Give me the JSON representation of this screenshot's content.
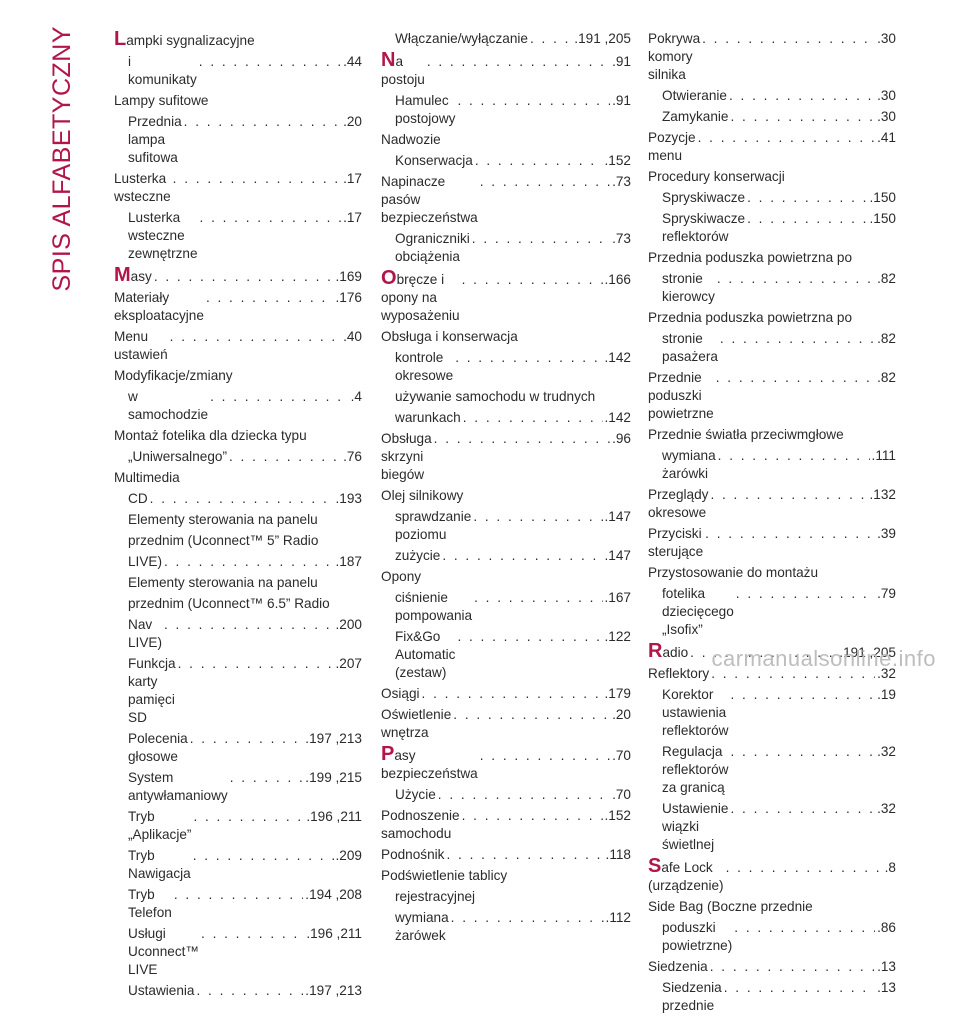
{
  "sidebar_title": "SPIS ALFABETYCZNY",
  "watermark": "carmanualsonline.info",
  "col1": [
    {
      "big": "L",
      "first": "ampki sygnalizacyjne",
      "rest": [],
      "page": ""
    },
    {
      "indent": 1,
      "text": "i komunikaty",
      "page": ".44"
    },
    {
      "text": "Lampy sufitowe",
      "page": ""
    },
    {
      "indent": 1,
      "text": "Przednia lampa sufitowa",
      "page": ".20"
    },
    {
      "text": "Lusterka wsteczne",
      "page": ".17"
    },
    {
      "indent": 1,
      "text": "Lusterka wsteczne zewnętrzne",
      "page": ".17"
    },
    {
      "big": "M",
      "first": "asy",
      "page": ".169"
    },
    {
      "text": "Materiały eksploatacyjne",
      "page": ".176"
    },
    {
      "text": "Menu ustawień",
      "page": ".40"
    },
    {
      "text": "Modyfikacje/zmiany",
      "page": ""
    },
    {
      "indent": 1,
      "text": "w samochodzie",
      "page": ".4"
    },
    {
      "text": "Montaż fotelika dla dziecka typu",
      "page": ""
    },
    {
      "indent": 1,
      "text": "„Uniwersalnego”",
      "page": ".76"
    },
    {
      "text": "Multimedia",
      "page": ""
    },
    {
      "indent": 1,
      "text": "CD",
      "page": ".193"
    },
    {
      "indent": 1,
      "text": "Elementy sterowania na panelu",
      "page": ""
    },
    {
      "indent": 1,
      "text": "przednim (Uconnect™ 5” Radio",
      "page": ""
    },
    {
      "indent": 1,
      "text": "LIVE)",
      "page": ".187"
    },
    {
      "indent": 1,
      "text": "Elementy sterowania na panelu",
      "page": ""
    },
    {
      "indent": 1,
      "text": "przednim (Uconnect™ 6.5” Radio",
      "page": ""
    },
    {
      "indent": 1,
      "text": "Nav LIVE)",
      "page": ".200"
    },
    {
      "indent": 1,
      "text": "Funkcja karty pamięci SD",
      "page": ".207"
    },
    {
      "indent": 1,
      "text": "Polecenia głosowe",
      "page": ".197 ,213"
    },
    {
      "indent": 1,
      "text": "System antywłamaniowy",
      "page": ".199 ,215"
    },
    {
      "indent": 1,
      "text": "Tryb „Aplikacje”",
      "page": ".196 ,211"
    },
    {
      "indent": 1,
      "text": "Tryb Nawigacja",
      "page": ".209"
    },
    {
      "indent": 1,
      "text": "Tryb Telefon",
      "page": ".194 ,208"
    },
    {
      "indent": 1,
      "text": "Usługi Uconnect™ LIVE",
      "page": ".196 ,211"
    },
    {
      "indent": 1,
      "text": "Ustawienia",
      "page": ".197 ,213"
    }
  ],
  "col2": [
    {
      "indent": 1,
      "text": "Włączanie/wyłączanie",
      "page": ".191 ,205"
    },
    {
      "big": "N",
      "first": "a postoju",
      "page": ".91"
    },
    {
      "indent": 1,
      "text": "Hamulec postojowy",
      "page": ".91"
    },
    {
      "text": "Nadwozie",
      "page": ""
    },
    {
      "indent": 1,
      "text": "Konserwacja",
      "page": ".152"
    },
    {
      "text": "Napinacze pasów bezpieczeństwa",
      "page": ".73"
    },
    {
      "indent": 1,
      "text": "Ograniczniki obciążenia",
      "page": ".73"
    },
    {
      "big": "O",
      "first": "bręcze i opony na wyposażeniu",
      "page": ".166"
    },
    {
      "text": "Obsługa i konserwacja",
      "page": ""
    },
    {
      "indent": 1,
      "text": "kontrole okresowe",
      "page": ".142"
    },
    {
      "indent": 1,
      "text": "używanie samochodu w trudnych",
      "page": ""
    },
    {
      "indent": 1,
      "text": "warunkach",
      "page": ".142"
    },
    {
      "text": "Obsługa skrzyni biegów",
      "page": ".96"
    },
    {
      "text": "Olej silnikowy",
      "page": ""
    },
    {
      "indent": 1,
      "text": "sprawdzanie poziomu",
      "page": ".147"
    },
    {
      "indent": 1,
      "text": "zużycie",
      "page": ".147"
    },
    {
      "text": "Opony",
      "page": ""
    },
    {
      "indent": 1,
      "text": "ciśnienie pompowania",
      "page": ".167"
    },
    {
      "indent": 1,
      "text": "Fix&Go Automatic (zestaw)",
      "page": ".122"
    },
    {
      "text": "Osiągi",
      "page": ".179"
    },
    {
      "text": "Oświetlenie wnętrza",
      "page": ".20"
    },
    {
      "big": "P",
      "first": "asy bezpieczeństwa",
      "page": ".70"
    },
    {
      "indent": 1,
      "text": "Użycie",
      "page": ".70"
    },
    {
      "text": "Podnoszenie samochodu",
      "page": ".152"
    },
    {
      "text": "Podnośnik",
      "page": ".118"
    },
    {
      "text": "Podświetlenie tablicy",
      "page": ""
    },
    {
      "indent": 1,
      "text": "rejestracyjnej",
      "page": ""
    },
    {
      "indent": 1,
      "text": "wymiana żarówek",
      "page": ".112"
    }
  ],
  "col3": [
    {
      "text": "Pokrywa komory silnika",
      "page": ".30"
    },
    {
      "indent": 1,
      "text": "Otwieranie",
      "page": ".30"
    },
    {
      "indent": 1,
      "text": "Zamykanie",
      "page": ".30"
    },
    {
      "text": "Pozycje menu",
      "page": ".41"
    },
    {
      "text": "Procedury konserwacji",
      "page": ""
    },
    {
      "indent": 1,
      "text": "Spryskiwacze",
      "page": ".150"
    },
    {
      "indent": 1,
      "text": "Spryskiwacze reflektorów",
      "page": ".150"
    },
    {
      "text": "Przednia poduszka powietrzna po",
      "page": ""
    },
    {
      "indent": 1,
      "text": "stronie kierowcy",
      "page": ".82"
    },
    {
      "text": "Przednia poduszka powietrzna po",
      "page": ""
    },
    {
      "indent": 1,
      "text": "stronie pasażera",
      "page": ".82"
    },
    {
      "text": "Przednie poduszki powietrzne",
      "page": ".82"
    },
    {
      "text": "Przednie światła przeciwmgłowe",
      "page": ""
    },
    {
      "indent": 1,
      "text": "wymiana żarówki",
      "page": ".111"
    },
    {
      "text": "Przeglądy okresowe",
      "page": ".132"
    },
    {
      "text": "Przyciski sterujące",
      "page": ".39"
    },
    {
      "text": "Przystosowanie do montażu",
      "page": ""
    },
    {
      "indent": 1,
      "text": "fotelika dziecięcego „Isofix”",
      "page": ".79"
    },
    {
      "big": "R",
      "first": "adio",
      "page": ".191 ,205"
    },
    {
      "text": "Reflektory",
      "page": ".32"
    },
    {
      "indent": 1,
      "text": "Korektor ustawienia reflektorów",
      "page": ".19"
    },
    {
      "indent": 1,
      "text": "Regulacja reflektorów za granicą",
      "page": ".32"
    },
    {
      "indent": 1,
      "text": "Ustawienie wiązki świetlnej",
      "page": ".32"
    },
    {
      "big": "S",
      "first": "afe Lock (urządzenie)",
      "page": ".8"
    },
    {
      "text": "Side Bag (Boczne przednie",
      "page": ""
    },
    {
      "indent": 1,
      "text": "poduszki powietrzne)",
      "page": ".86"
    },
    {
      "text": "Siedzenia",
      "page": ".13"
    },
    {
      "indent": 1,
      "text": "Siedzenia przednie",
      "page": ".13"
    }
  ]
}
